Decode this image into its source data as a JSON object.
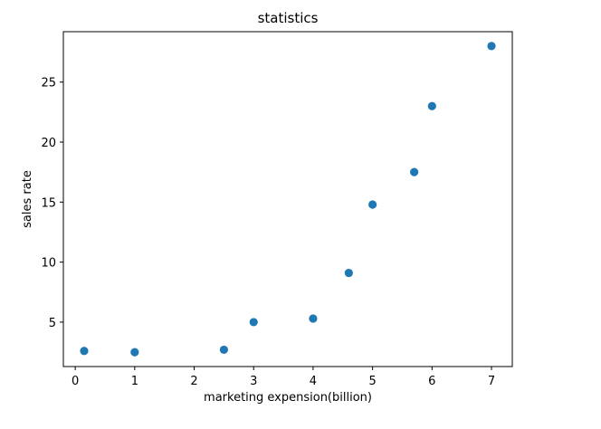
{
  "chart_data": {
    "type": "scatter",
    "title": "statistics",
    "xlabel": "marketing expension(billion)",
    "ylabel": "sales rate",
    "xlim": [
      -0.2,
      7.35
    ],
    "ylim": [
      1.3,
      29.2
    ],
    "xticks": [
      0,
      1,
      2,
      3,
      4,
      5,
      6,
      7
    ],
    "yticks": [
      5,
      10,
      15,
      20,
      25
    ],
    "grid": false,
    "marker_color": "#1f77b4",
    "series": [
      {
        "x": [
          0.15,
          1.0,
          2.5,
          3.0,
          4.0,
          4.6,
          5.0,
          5.7,
          6.0,
          7.0
        ],
        "y": [
          2.6,
          2.5,
          2.7,
          5.0,
          5.3,
          9.1,
          14.8,
          17.5,
          23.0,
          28.0
        ]
      }
    ]
  }
}
